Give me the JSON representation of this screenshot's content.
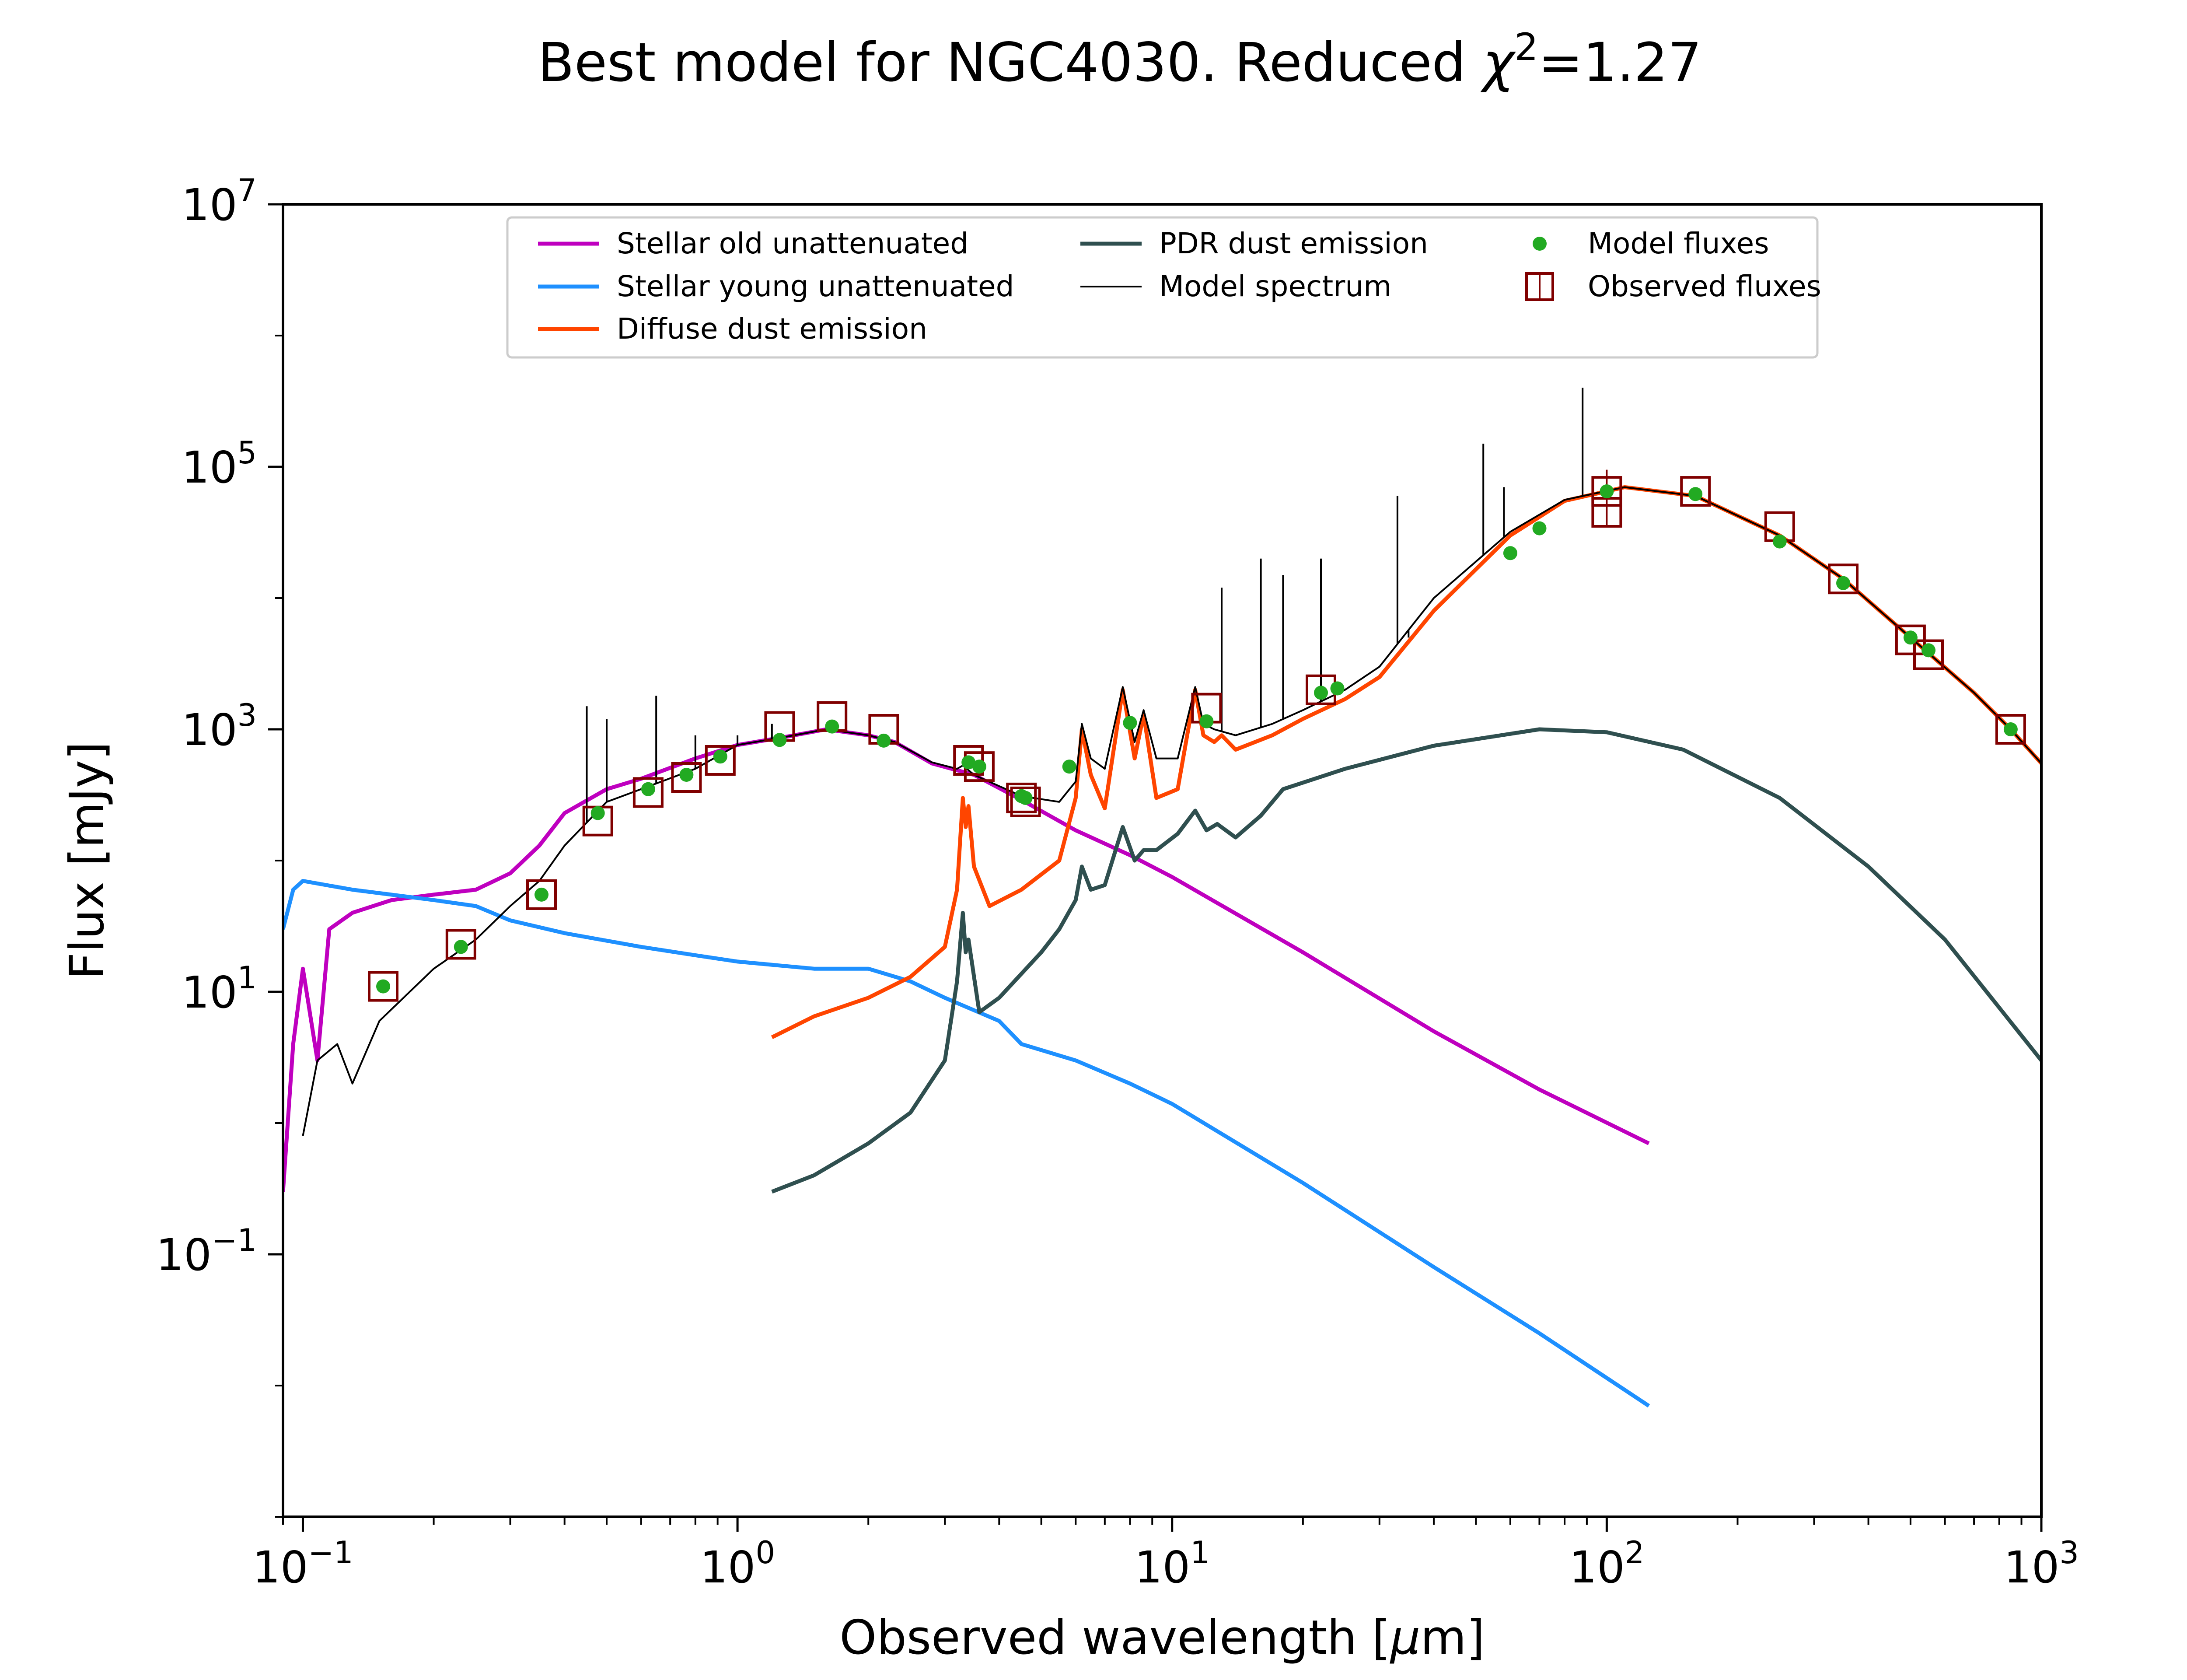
{
  "chart_data": {
    "type": "line",
    "title_prefix": "Best model for NGC4030. Reduced ",
    "title_chi": "χ",
    "title_sup": "2",
    "title_suffix": "=1.27",
    "xlabel_prefix": "Observed wavelength [",
    "xlabel_mu": "μ",
    "xlabel_suffix": "m]",
    "ylabel": "Flux [mJy]",
    "x_scale": "log",
    "y_scale": "log",
    "xlim": [
      0.09,
      1000
    ],
    "ylim": [
      0.001,
      10000000
    ],
    "x_ticks": [
      {
        "value": 0.1,
        "base": "10",
        "exp": "−1"
      },
      {
        "value": 1,
        "base": "10",
        "exp": "0"
      },
      {
        "value": 10,
        "base": "10",
        "exp": "1"
      },
      {
        "value": 100,
        "base": "10",
        "exp": "2"
      },
      {
        "value": 1000,
        "base": "10",
        "exp": "3"
      }
    ],
    "y_ticks": [
      {
        "value": 0.1,
        "base": "10",
        "exp": "−1"
      },
      {
        "value": 10,
        "base": "10",
        "exp": "1"
      },
      {
        "value": 1000,
        "base": "10",
        "exp": "3"
      },
      {
        "value": 100000,
        "base": "10",
        "exp": "5"
      },
      {
        "value": 10000000,
        "base": "10",
        "exp": "7"
      }
    ],
    "grid": false,
    "legend_position": "upper-center",
    "legend": [
      {
        "label": "Stellar old unattenuated",
        "color": "#bf00bf",
        "kind": "line"
      },
      {
        "label": "Stellar young unattenuated",
        "color": "#1e90ff",
        "kind": "line"
      },
      {
        "label": "Diffuse dust emission",
        "color": "#ff4500",
        "kind": "line"
      },
      {
        "label": "PDR dust emission",
        "color": "#2f4f4f",
        "kind": "line"
      },
      {
        "label": "Model spectrum",
        "color": "#000000",
        "kind": "thin-line"
      },
      {
        "label": "Model fluxes",
        "color": "#22aa22",
        "kind": "dot"
      },
      {
        "label": "Observed fluxes",
        "color": "#800000",
        "kind": "square"
      }
    ],
    "series": [
      {
        "name": "Stellar old unattenuated",
        "color": "#bf00bf",
        "points": [
          [
            0.09,
            0.3
          ],
          [
            0.095,
            4
          ],
          [
            0.1,
            15
          ],
          [
            0.108,
            3
          ],
          [
            0.115,
            30
          ],
          [
            0.13,
            40
          ],
          [
            0.16,
            50
          ],
          [
            0.2,
            55
          ],
          [
            0.25,
            60
          ],
          [
            0.3,
            80
          ],
          [
            0.35,
            130
          ],
          [
            0.4,
            230
          ],
          [
            0.5,
            350
          ],
          [
            0.6,
            420
          ],
          [
            0.8,
            600
          ],
          [
            1.0,
            760
          ],
          [
            1.3,
            880
          ],
          [
            1.6,
            1000
          ],
          [
            2.0,
            900
          ],
          [
            2.3,
            800
          ],
          [
            2.8,
            550
          ],
          [
            3.5,
            450
          ],
          [
            4.5,
            290
          ],
          [
            6,
            170
          ],
          [
            8,
            110
          ],
          [
            10,
            75
          ],
          [
            20,
            20
          ],
          [
            40,
            5
          ],
          [
            70,
            1.8
          ],
          [
            125,
            0.7
          ]
        ]
      },
      {
        "name": "Stellar young unattenuated",
        "color": "#1e90ff",
        "points": [
          [
            0.09,
            30
          ],
          [
            0.095,
            60
          ],
          [
            0.1,
            70
          ],
          [
            0.13,
            60
          ],
          [
            0.2,
            50
          ],
          [
            0.25,
            45
          ],
          [
            0.3,
            35
          ],
          [
            0.4,
            28
          ],
          [
            0.6,
            22
          ],
          [
            0.8,
            19
          ],
          [
            1.0,
            17
          ],
          [
            1.5,
            15
          ],
          [
            2.0,
            15
          ],
          [
            2.5,
            12
          ],
          [
            3.0,
            9
          ],
          [
            4.0,
            6
          ],
          [
            4.5,
            4
          ],
          [
            6,
            3
          ],
          [
            8,
            2
          ],
          [
            10,
            1.4
          ],
          [
            20,
            0.35
          ],
          [
            40,
            0.08
          ],
          [
            70,
            0.025
          ],
          [
            125,
            0.007
          ]
        ]
      },
      {
        "name": "Diffuse dust emission",
        "color": "#ff4500",
        "points": [
          [
            1.2,
            4.5
          ],
          [
            1.5,
            6.5
          ],
          [
            2.0,
            9
          ],
          [
            2.5,
            13
          ],
          [
            3.0,
            22
          ],
          [
            3.2,
            60
          ],
          [
            3.3,
            300
          ],
          [
            3.35,
            180
          ],
          [
            3.4,
            260
          ],
          [
            3.5,
            90
          ],
          [
            3.8,
            45
          ],
          [
            4.5,
            60
          ],
          [
            5.5,
            100
          ],
          [
            6.0,
            300
          ],
          [
            6.2,
            1000
          ],
          [
            6.5,
            450
          ],
          [
            7.0,
            250
          ],
          [
            7.7,
            2000
          ],
          [
            8.2,
            600
          ],
          [
            8.6,
            1300
          ],
          [
            9.2,
            300
          ],
          [
            10.3,
            350
          ],
          [
            11.3,
            2000
          ],
          [
            11.8,
            900
          ],
          [
            12.5,
            800
          ],
          [
            13,
            900
          ],
          [
            14,
            700
          ],
          [
            17,
            900
          ],
          [
            20,
            1200
          ],
          [
            25,
            1700
          ],
          [
            30,
            2500
          ],
          [
            40,
            8000
          ],
          [
            60,
            30000
          ],
          [
            80,
            55000
          ],
          [
            110,
            70000
          ],
          [
            160,
            60000
          ],
          [
            250,
            30000
          ],
          [
            350,
            14000
          ],
          [
            500,
            5000
          ],
          [
            700,
            1900
          ],
          [
            850,
            1000
          ],
          [
            1000,
            550
          ]
        ]
      },
      {
        "name": "PDR dust emission",
        "color": "#2f4f4f",
        "points": [
          [
            1.2,
            0.3
          ],
          [
            1.5,
            0.4
          ],
          [
            2.0,
            0.7
          ],
          [
            2.5,
            1.2
          ],
          [
            3.0,
            3
          ],
          [
            3.2,
            12
          ],
          [
            3.3,
            40
          ],
          [
            3.35,
            20
          ],
          [
            3.4,
            25
          ],
          [
            3.6,
            7
          ],
          [
            4.0,
            9
          ],
          [
            5.0,
            20
          ],
          [
            5.5,
            30
          ],
          [
            6.0,
            50
          ],
          [
            6.2,
            90
          ],
          [
            6.5,
            60
          ],
          [
            7.0,
            65
          ],
          [
            7.7,
            180
          ],
          [
            8.2,
            100
          ],
          [
            8.6,
            120
          ],
          [
            9.2,
            120
          ],
          [
            10.3,
            160
          ],
          [
            11.3,
            240
          ],
          [
            12,
            170
          ],
          [
            12.7,
            190
          ],
          [
            14,
            150
          ],
          [
            16,
            220
          ],
          [
            18,
            350
          ],
          [
            25,
            500
          ],
          [
            40,
            750
          ],
          [
            70,
            1000
          ],
          [
            100,
            950
          ],
          [
            150,
            700
          ],
          [
            250,
            300
          ],
          [
            400,
            90
          ],
          [
            600,
            25
          ],
          [
            1000,
            3
          ]
        ]
      },
      {
        "name": "Model spectrum",
        "color": "#000000",
        "points": [
          [
            0.1,
            0.8
          ],
          [
            0.108,
            3
          ],
          [
            0.12,
            4
          ],
          [
            0.13,
            2
          ],
          [
            0.15,
            6
          ],
          [
            0.2,
            15
          ],
          [
            0.25,
            25
          ],
          [
            0.3,
            45
          ],
          [
            0.35,
            70
          ],
          [
            0.4,
            130
          ],
          [
            0.5,
            280
          ],
          [
            0.6,
            350
          ],
          [
            0.8,
            500
          ],
          [
            1.0,
            760
          ],
          [
            1.3,
            880
          ],
          [
            1.6,
            1000
          ],
          [
            2.0,
            900
          ],
          [
            2.3,
            800
          ],
          [
            2.8,
            560
          ],
          [
            3.2,
            500
          ],
          [
            3.3,
            530
          ],
          [
            3.5,
            450
          ],
          [
            4.5,
            310
          ],
          [
            5.5,
            280
          ],
          [
            6.0,
            400
          ],
          [
            6.2,
            1100
          ],
          [
            6.5,
            600
          ],
          [
            7.0,
            500
          ],
          [
            7.7,
            2100
          ],
          [
            8.2,
            800
          ],
          [
            8.6,
            1400
          ],
          [
            9.2,
            600
          ],
          [
            10.3,
            600
          ],
          [
            11.3,
            2100
          ],
          [
            11.8,
            1100
          ],
          [
            12.5,
            1000
          ],
          [
            14,
            900
          ],
          [
            17,
            1100
          ],
          [
            20,
            1400
          ],
          [
            25,
            2000
          ],
          [
            30,
            3000
          ],
          [
            40,
            10000
          ],
          [
            60,
            32000
          ],
          [
            80,
            56000
          ],
          [
            110,
            70000
          ],
          [
            160,
            60000
          ],
          [
            250,
            30000
          ],
          [
            350,
            14000
          ],
          [
            500,
            5000
          ],
          [
            700,
            1900
          ],
          [
            850,
            1000
          ],
          [
            1000,
            550
          ]
        ],
        "spikes": [
          [
            0.45,
            1500
          ],
          [
            0.5,
            1200
          ],
          [
            0.65,
            1800
          ],
          [
            0.8,
            900
          ],
          [
            1.0,
            900
          ],
          [
            1.2,
            1100
          ],
          [
            13,
            12000
          ],
          [
            16,
            20000
          ],
          [
            18,
            15000
          ],
          [
            22,
            20000
          ],
          [
            33,
            60000
          ],
          [
            35,
            5000
          ],
          [
            52,
            150000
          ],
          [
            58,
            70000
          ],
          [
            88,
            400000
          ]
        ]
      }
    ],
    "model_fluxes": [
      [
        0.153,
        11
      ],
      [
        0.231,
        22
      ],
      [
        0.354,
        55
      ],
      [
        0.477,
        230
      ],
      [
        0.623,
        350
      ],
      [
        0.763,
        450
      ],
      [
        0.913,
        620
      ],
      [
        1.25,
        830
      ],
      [
        1.65,
        1050
      ],
      [
        2.17,
        820
      ],
      [
        3.4,
        560
      ],
      [
        3.6,
        520
      ],
      [
        4.5,
        310
      ],
      [
        4.6,
        300
      ],
      [
        5.8,
        520
      ],
      [
        8.0,
        1120
      ],
      [
        12,
        1150
      ],
      [
        22,
        1900
      ],
      [
        24,
        2050
      ],
      [
        60,
        22000
      ],
      [
        70,
        34000
      ],
      [
        100,
        65000
      ],
      [
        160,
        62000
      ],
      [
        250,
        27000
      ],
      [
        350,
        13000
      ],
      [
        500,
        5000
      ],
      [
        550,
        4000
      ],
      [
        850,
        1000
      ]
    ],
    "observed_fluxes": [
      {
        "x": 0.153,
        "y": 11,
        "err": 0
      },
      {
        "x": 0.231,
        "y": 23,
        "err": 0
      },
      {
        "x": 0.354,
        "y": 55,
        "err": 0
      },
      {
        "x": 0.477,
        "y": 200,
        "err": 0
      },
      {
        "x": 0.623,
        "y": 330,
        "err": 0
      },
      {
        "x": 0.763,
        "y": 430,
        "err": 0
      },
      {
        "x": 0.913,
        "y": 580,
        "err": 0
      },
      {
        "x": 1.25,
        "y": 1050,
        "err": 0
      },
      {
        "x": 1.65,
        "y": 1250,
        "err": 0
      },
      {
        "x": 2.17,
        "y": 1000,
        "err": 0
      },
      {
        "x": 3.4,
        "y": 580,
        "err": 0
      },
      {
        "x": 3.6,
        "y": 520,
        "err": 0
      },
      {
        "x": 4.5,
        "y": 300,
        "err": 0
      },
      {
        "x": 4.6,
        "y": 280,
        "err": 0
      },
      {
        "x": 12,
        "y": 1450,
        "err": 0
      },
      {
        "x": 22,
        "y": 2000,
        "err": 0
      },
      {
        "x": 100,
        "y": 65000,
        "err": 30000
      },
      {
        "x": 100,
        "y": 45000,
        "err": 0
      },
      {
        "x": 160,
        "y": 65000,
        "err": 0
      },
      {
        "x": 250,
        "y": 35000,
        "err": 0
      },
      {
        "x": 350,
        "y": 14000,
        "err": 0
      },
      {
        "x": 500,
        "y": 4800,
        "err": 0
      },
      {
        "x": 550,
        "y": 3700,
        "err": 0
      },
      {
        "x": 850,
        "y": 1000,
        "err": 0
      }
    ]
  }
}
